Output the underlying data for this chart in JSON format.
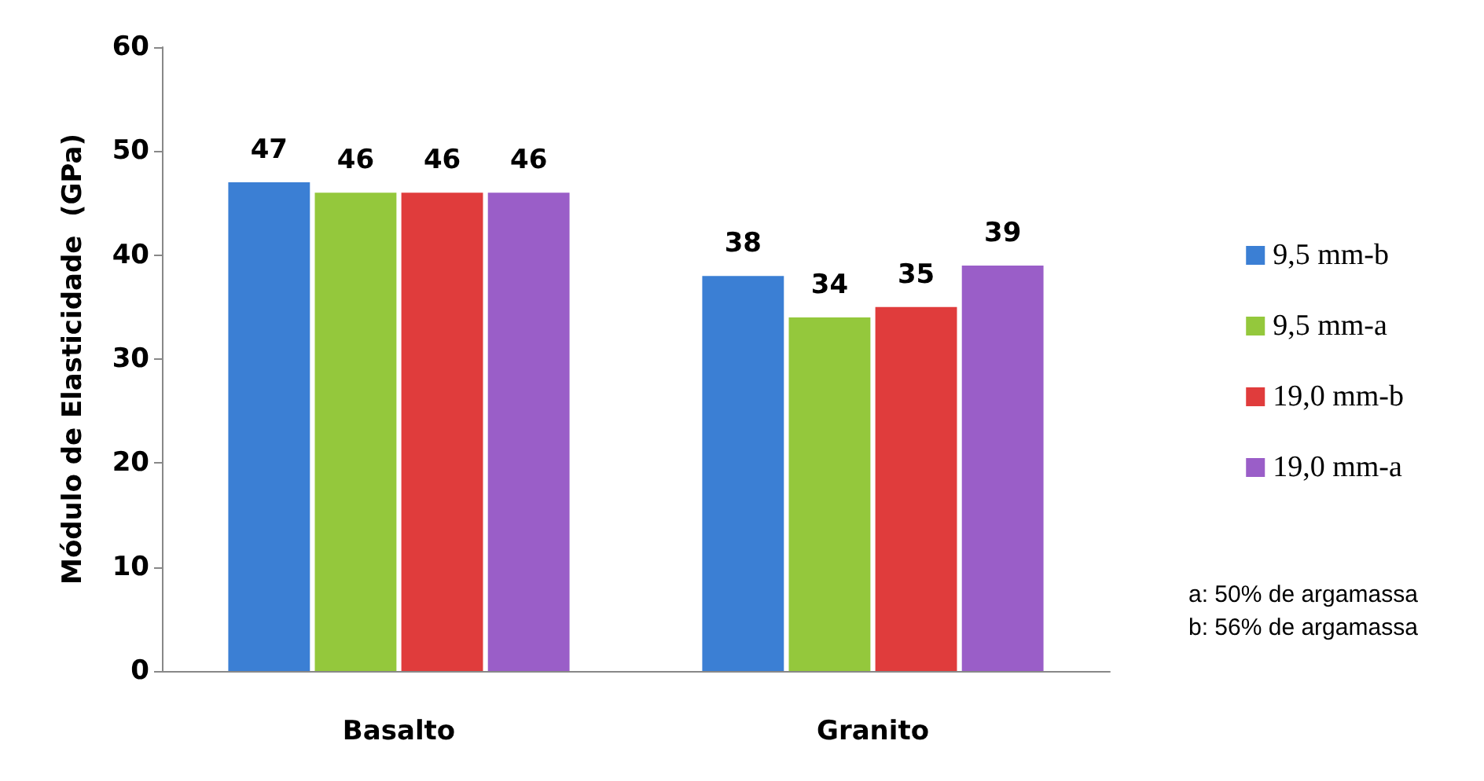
{
  "chart_data": {
    "type": "bar",
    "ylabel": "Módulo de Elasticidade  (GPa)",
    "categories": [
      "Basalto",
      "Granito"
    ],
    "series": [
      {
        "name": "9,5 mm-b",
        "color": "#3b7fd4",
        "values": [
          47,
          38
        ]
      },
      {
        "name": "9,5 mm-a",
        "color": "#94c83c",
        "values": [
          46,
          34
        ]
      },
      {
        "name": "19,0 mm-b",
        "color": "#e03c3c",
        "values": [
          46,
          35
        ]
      },
      {
        "name": "19,0 mm-a",
        "color": "#9a5ec8",
        "values": [
          46,
          39
        ]
      }
    ],
    "ylim": [
      0,
      60
    ],
    "yticks": [
      0,
      10,
      20,
      30,
      40,
      50,
      60
    ],
    "grid": false,
    "legend": "right",
    "data_labels": true,
    "annotations": [
      "a: 50% de argamassa",
      "b: 56% de argamassa"
    ]
  }
}
